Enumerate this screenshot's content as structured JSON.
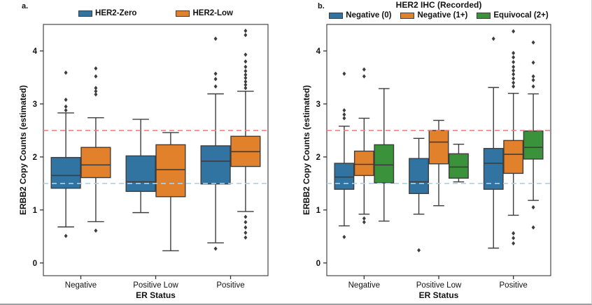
{
  "figure": {
    "background": "#ffffff",
    "frame_color": "#9aa0a6",
    "box_edge_color": "#3d3d3d",
    "spine_color": "#555555",
    "outlier_marker": "diamond"
  },
  "chart_data": [
    {
      "type": "box",
      "panel_label": "a.",
      "title": "",
      "xlabel": "ER Status",
      "ylabel": "ERBB2 Copy Counts (estimated)",
      "categories": [
        "Negative",
        "Positive Low",
        "Positive"
      ],
      "yticks": [
        0,
        1,
        2,
        3,
        4
      ],
      "ylim": [
        -0.24,
        4.5
      ],
      "grid": false,
      "legend_position": "top-center",
      "ref_lines": [
        {
          "value": 2.5,
          "color": "#f08080",
          "style": "dashed"
        },
        {
          "value": 1.5,
          "color": "#a9d3ea",
          "style": "dashed"
        }
      ],
      "series": [
        {
          "name": "HER2-Zero",
          "color": "#3274A1",
          "boxes": [
            {
              "whisker_low": 0.68,
              "q1": 1.41,
              "median": 1.65,
              "q3": 1.99,
              "whisker_high": 2.83,
              "outliers": [
                0.51,
                2.88,
                2.95,
                3.08,
                3.59
              ]
            },
            {
              "whisker_low": 0.95,
              "q1": 1.35,
              "median": 1.53,
              "q3": 2.02,
              "whisker_high": 2.71,
              "outliers": []
            },
            {
              "whisker_low": 0.38,
              "q1": 1.49,
              "median": 1.92,
              "q3": 2.21,
              "whisker_high": 3.19,
              "outliers": [
                0.27,
                3.33,
                3.47,
                3.57,
                4.23
              ]
            }
          ]
        },
        {
          "name": "HER2-Low",
          "color": "#E1812C",
          "boxes": [
            {
              "whisker_low": 0.78,
              "q1": 1.61,
              "median": 1.85,
              "q3": 2.18,
              "whisker_high": 2.74,
              "outliers": [
                0.61,
                3.18,
                3.24,
                3.3,
                3.52,
                3.67
              ]
            },
            {
              "whisker_low": 0.23,
              "q1": 1.25,
              "median": 1.76,
              "q3": 2.23,
              "whisker_high": 2.46,
              "outliers": []
            },
            {
              "whisker_low": 0.97,
              "q1": 1.82,
              "median": 2.1,
              "q3": 2.39,
              "whisker_high": 3.24,
              "outliers": [
                0.48,
                0.57,
                0.67,
                0.77,
                0.87,
                3.3,
                3.36,
                3.42,
                3.49,
                3.55,
                3.62,
                3.7,
                3.8,
                3.93,
                4.3,
                4.38
              ]
            }
          ]
        }
      ]
    },
    {
      "type": "box",
      "panel_label": "b.",
      "title": "HER2 IHC (Recorded)",
      "xlabel": "ER Status",
      "ylabel": "ERBB2 Copy Counts (estimated)",
      "categories": [
        "Negative",
        "Positive Low",
        "Positive"
      ],
      "yticks": [
        0,
        1,
        2,
        3,
        4
      ],
      "ylim": [
        -0.24,
        4.5
      ],
      "grid": false,
      "legend_position": "top-center",
      "ref_lines": [
        {
          "value": 2.5,
          "color": "#f08080",
          "style": "dashed"
        },
        {
          "value": 1.5,
          "color": "#a9d3ea",
          "style": "dashed"
        }
      ],
      "series": [
        {
          "name": "Negative (0)",
          "color": "#3274A1",
          "boxes": [
            {
              "whisker_low": 0.7,
              "q1": 1.39,
              "median": 1.62,
              "q3": 1.88,
              "whisker_high": 2.58,
              "outliers": [
                0.49,
                2.73,
                2.8,
                2.88,
                3.57
              ]
            },
            {
              "whisker_low": 0.92,
              "q1": 1.31,
              "median": 1.53,
              "q3": 1.97,
              "whisker_high": 2.35,
              "outliers": [
                0.24
              ]
            },
            {
              "whisker_low": 0.28,
              "q1": 1.39,
              "median": 1.88,
              "q3": 2.16,
              "whisker_high": 3.31,
              "outliers": [
                4.23
              ]
            }
          ]
        },
        {
          "name": "Negative (1+)",
          "color": "#E1812C",
          "boxes": [
            {
              "whisker_low": 0.92,
              "q1": 1.65,
              "median": 1.86,
              "q3": 2.11,
              "whisker_high": 2.73,
              "outliers": [
                0.77,
                0.84,
                3.52,
                3.65
              ]
            },
            {
              "whisker_low": 1.08,
              "q1": 1.87,
              "median": 2.28,
              "q3": 2.5,
              "whisker_high": 2.69,
              "outliers": []
            },
            {
              "whisker_low": 0.9,
              "q1": 1.69,
              "median": 2.05,
              "q3": 2.31,
              "whisker_high": 3.2,
              "outliers": [
                0.37,
                0.47,
                0.56,
                3.33,
                3.4,
                3.48,
                3.56,
                3.63,
                3.7,
                3.79,
                3.88,
                3.96,
                4.37
              ]
            }
          ]
        },
        {
          "name": "Equivocal (2+)",
          "color": "#3A923A",
          "boxes": [
            {
              "whisker_low": 0.79,
              "q1": 1.51,
              "median": 1.85,
              "q3": 2.23,
              "whisker_high": 3.29,
              "outliers": []
            },
            {
              "whisker_low": 1.53,
              "q1": 1.6,
              "median": 1.81,
              "q3": 2.06,
              "whisker_high": 2.24,
              "outliers": []
            },
            {
              "whisker_low": 1.18,
              "q1": 1.96,
              "median": 2.18,
              "q3": 2.49,
              "whisker_high": 3.19,
              "outliers": [
                0.67,
                1.05,
                3.33,
                3.45,
                3.52,
                3.78,
                4.16
              ]
            }
          ]
        }
      ]
    }
  ]
}
